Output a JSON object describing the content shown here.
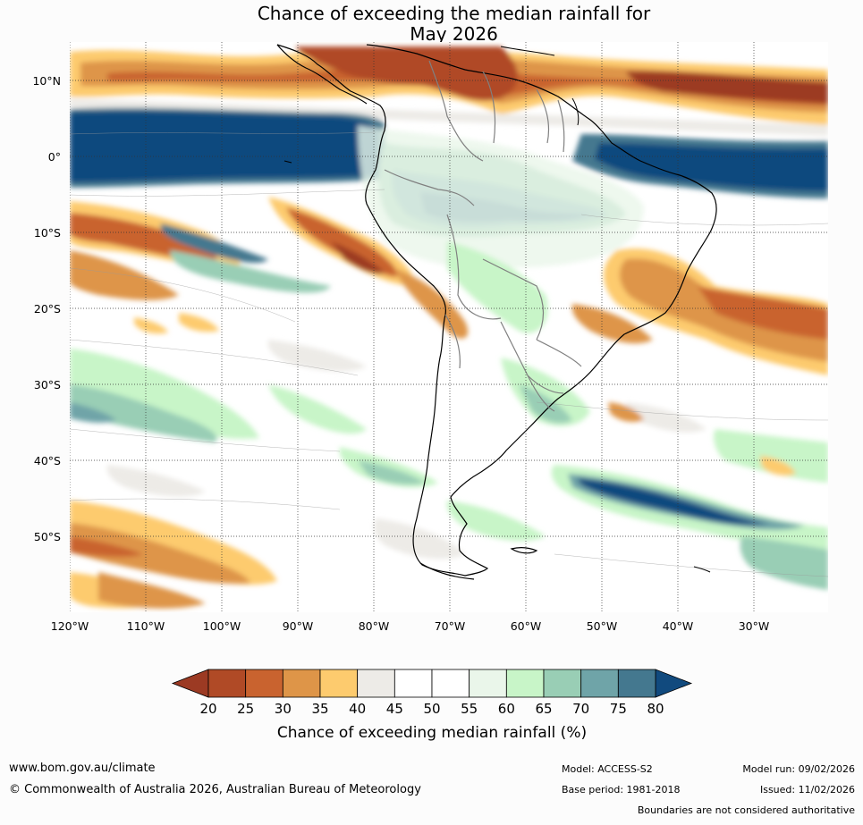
{
  "title": {
    "line1": "Chance of exceeding the median rainfall for",
    "line2": "May 2026"
  },
  "map": {
    "region": "South America",
    "lat_labels": [
      "10°N",
      "0°",
      "10°S",
      "20°S",
      "30°S",
      "40°S",
      "50°S"
    ],
    "lon_labels": [
      "120°W",
      "110°W",
      "100°W",
      "90°W",
      "80°W",
      "70°W",
      "60°W",
      "50°W",
      "40°W",
      "30°W"
    ]
  },
  "colorbar": {
    "label": "Chance of exceeding median rainfall (%)",
    "ticks": [
      "20",
      "25",
      "30",
      "35",
      "40",
      "45",
      "50",
      "55",
      "60",
      "65",
      "70",
      "75",
      "80"
    ],
    "colors": [
      "#9c3a23",
      "#b04a26",
      "#c9632f",
      "#de9548",
      "#fdcb6e",
      "#edebe7",
      "#ffffff",
      "#ffffff",
      "#eaf6ea",
      "#c8f5c8",
      "#99ceb5",
      "#6fa4a8",
      "#44788f",
      "#114a7e"
    ],
    "under_color": "#9c3a23",
    "over_color": "#114a7e"
  },
  "footer": {
    "website": "www.bom.gov.au/climate",
    "copyright": "© Commonwealth of Australia 2026, Australian Bureau of Meteorology",
    "model": "Model: ACCESS-S2",
    "base_period": "Base period: 1981-2018",
    "model_run": "Model run: 09/02/2026",
    "issued": "Issued: 11/02/2026",
    "disclaimer": "Boundaries are not considered authoritative"
  }
}
